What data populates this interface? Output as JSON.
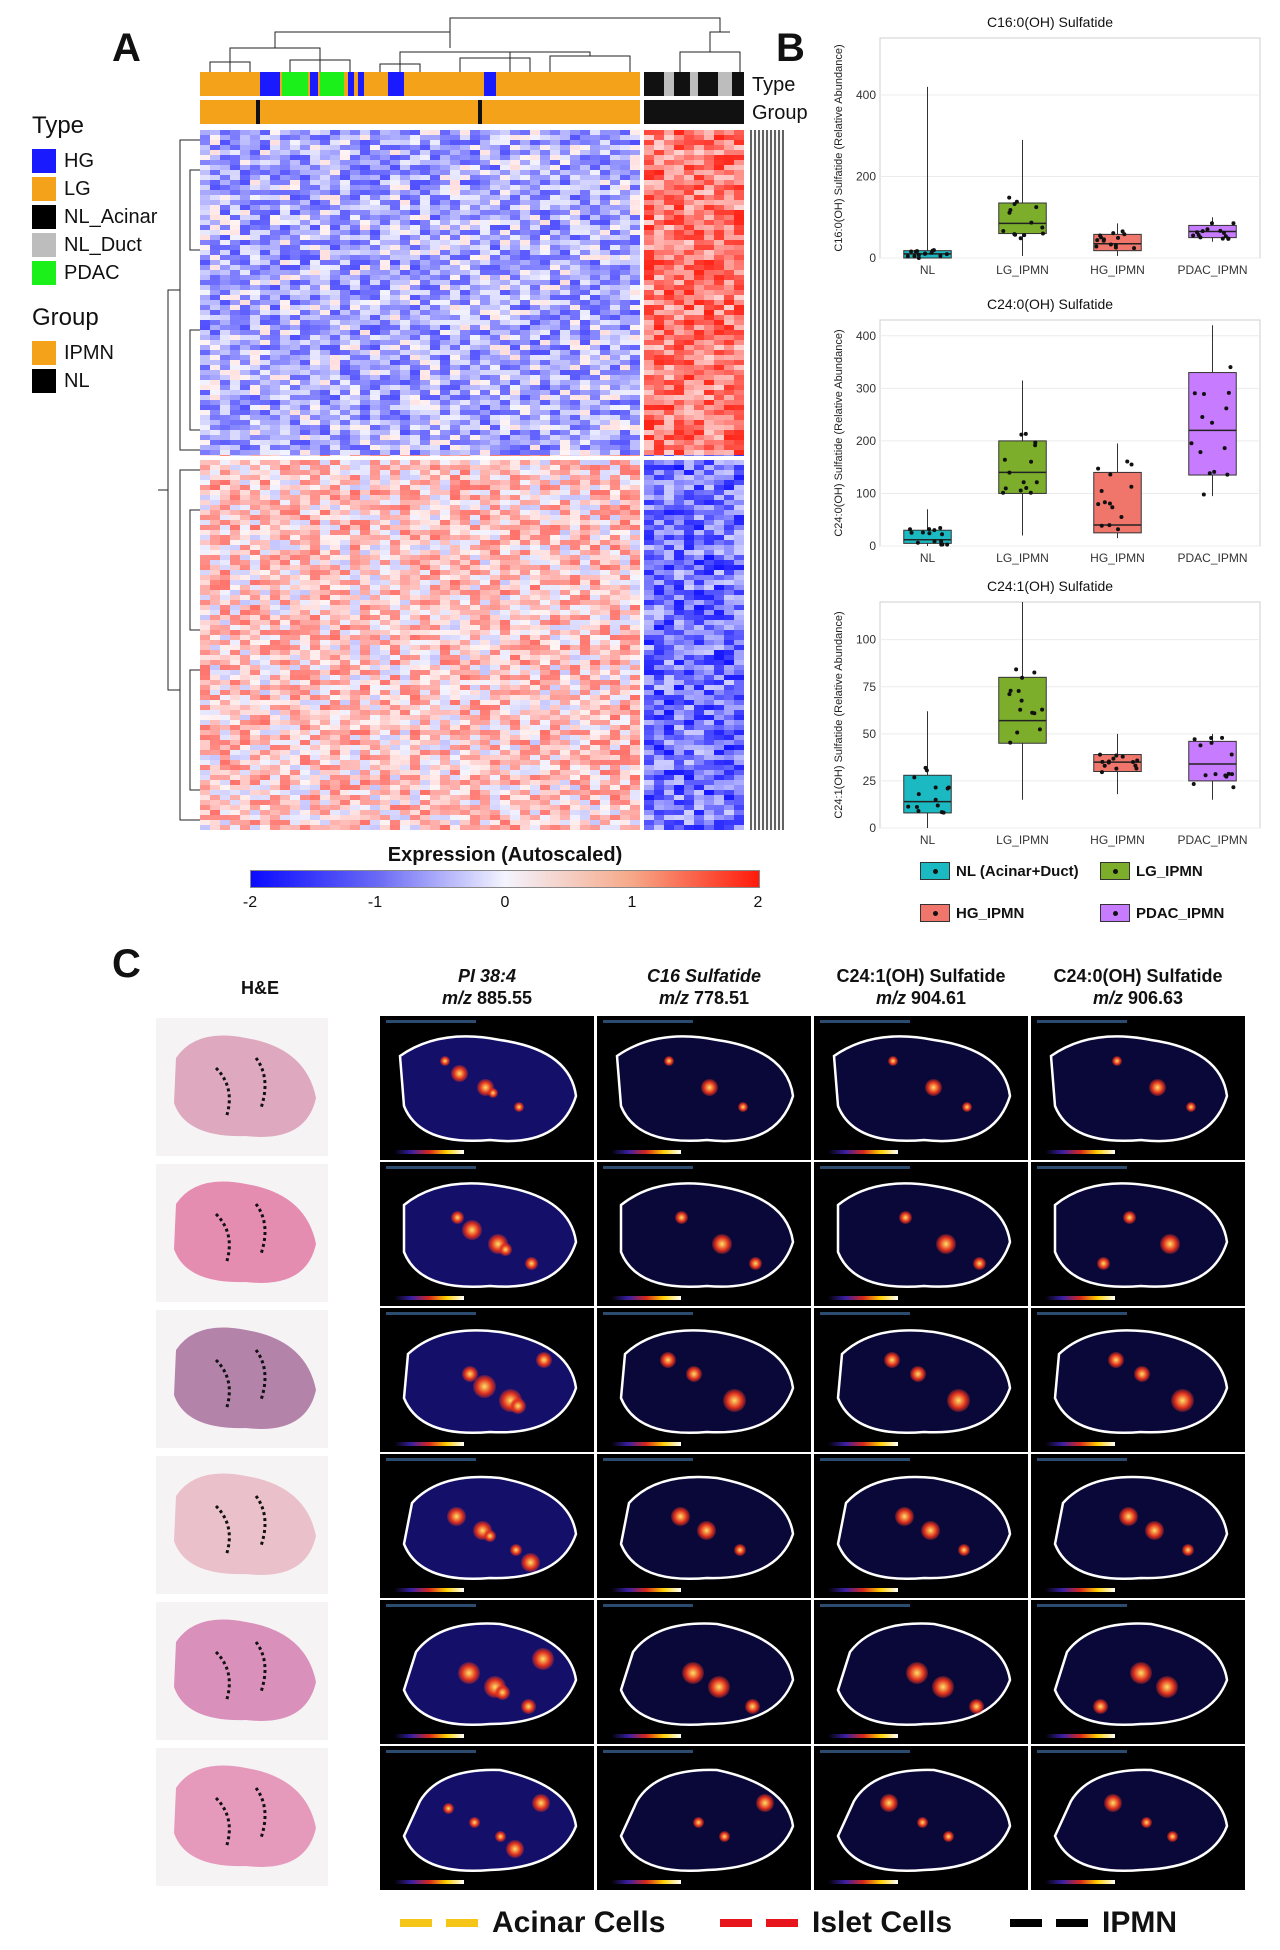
{
  "panel_labels": {
    "a": "A",
    "b": "B",
    "c": "C"
  },
  "panelA": {
    "legend": {
      "type_title": "Type",
      "types": [
        {
          "label": "HG",
          "color": "#1a1aff"
        },
        {
          "label": "LG",
          "color": "#f5a21b"
        },
        {
          "label": "NL_Acinar",
          "color": "#000000"
        },
        {
          "label": "NL_Duct",
          "color": "#bdbdbd"
        },
        {
          "label": "PDAC",
          "color": "#1bf01b"
        }
      ],
      "group_title": "Group",
      "groups": [
        {
          "label": "IPMN",
          "color": "#f5a21b"
        },
        {
          "label": "NL",
          "color": "#000000"
        }
      ]
    },
    "annotation_labels": {
      "type": "Type",
      "group": "Group"
    },
    "colorbar": {
      "title": "Expression (Autoscaled)",
      "ticks": [
        "-2",
        "-1",
        "0",
        "1",
        "2"
      ],
      "low_color": "#0a0aff",
      "high_color": "#ff1a0a"
    }
  },
  "chart_data": [
    {
      "type": "box",
      "title": "C16:0(OH) Sulfatide",
      "ylabel": "C16:0(OH) Sulfatide (Relative Abundance)",
      "categories": [
        "NL",
        "LG_IPMN",
        "HG_IPMN",
        "PDAC_IPMN"
      ],
      "ylim": [
        0,
        540
      ],
      "yticks": [
        0,
        200,
        400
      ],
      "boxes": [
        {
          "q1": 0,
          "median": 10,
          "q3": 18,
          "lo": 0,
          "hi": 420
        },
        {
          "q1": 60,
          "median": 85,
          "q3": 135,
          "lo": 5,
          "hi": 290
        },
        {
          "q1": 18,
          "median": 35,
          "q3": 58,
          "lo": 5,
          "hi": 85
        },
        {
          "q1": 50,
          "median": 65,
          "q3": 80,
          "lo": 40,
          "hi": 100
        }
      ]
    },
    {
      "type": "box",
      "title": "C24:0(OH) Sulfatide",
      "ylabel": "C24:0(OH) Sulfatide (Relative Abundance)",
      "categories": [
        "NL",
        "LG_IPMN",
        "HG_IPMN",
        "PDAC_IPMN"
      ],
      "ylim": [
        0,
        430
      ],
      "yticks": [
        0,
        100,
        200,
        300,
        400
      ],
      "boxes": [
        {
          "q1": 5,
          "median": 12,
          "q3": 30,
          "lo": 0,
          "hi": 70
        },
        {
          "q1": 100,
          "median": 140,
          "q3": 200,
          "lo": 20,
          "hi": 315
        },
        {
          "q1": 25,
          "median": 40,
          "q3": 140,
          "lo": 15,
          "hi": 195
        },
        {
          "q1": 135,
          "median": 220,
          "q3": 330,
          "lo": 95,
          "hi": 420
        }
      ]
    },
    {
      "type": "box",
      "title": "C24:1(OH) Sulfatide",
      "ylabel": "C24:1(OH) Sulfatide (Relative Abundance)",
      "categories": [
        "NL",
        "LG_IPMN",
        "HG_IPMN",
        "PDAC_IPMN"
      ],
      "ylim": [
        0,
        120
      ],
      "yticks": [
        0,
        25,
        50,
        75,
        100
      ],
      "boxes": [
        {
          "q1": 8,
          "median": 14,
          "q3": 28,
          "lo": 0,
          "hi": 62
        },
        {
          "q1": 45,
          "median": 57,
          "q3": 80,
          "lo": 15,
          "hi": 120
        },
        {
          "q1": 30,
          "median": 35,
          "q3": 39,
          "lo": 18,
          "hi": 50
        },
        {
          "q1": 25,
          "median": 34,
          "q3": 46,
          "lo": 15,
          "hi": 50
        }
      ]
    }
  ],
  "panelB_legend": [
    {
      "label": "NL (Acinar+Duct)",
      "color": "#1bb9c2"
    },
    {
      "label": "LG_IPMN",
      "color": "#7cae2b"
    },
    {
      "label": "HG_IPMN",
      "color": "#f0766c"
    },
    {
      "label": "PDAC_IPMN",
      "color": "#c77cff"
    }
  ],
  "panelC": {
    "he_header": "H&E",
    "columns": [
      {
        "name": "PI 38:4",
        "mz_label": "m/z",
        "mz": "885.55",
        "italic_name": true
      },
      {
        "name": "C16 Sulfatide",
        "mz_label": "m/z",
        "mz": "778.51",
        "italic_name": true
      },
      {
        "name": "C24:1(OH) Sulfatide",
        "mz_label": "m/z",
        "mz": "904.61",
        "italic_name": false
      },
      {
        "name": "C24:0(OH) Sulfatide",
        "mz_label": "m/z",
        "mz": "906.63",
        "italic_name": false
      }
    ],
    "legend": [
      {
        "label": "Acinar Cells",
        "color": "#f5c518"
      },
      {
        "label": "Islet Cells",
        "color": "#e8141c"
      },
      {
        "label": "IPMN",
        "color": "#000000"
      }
    ]
  }
}
